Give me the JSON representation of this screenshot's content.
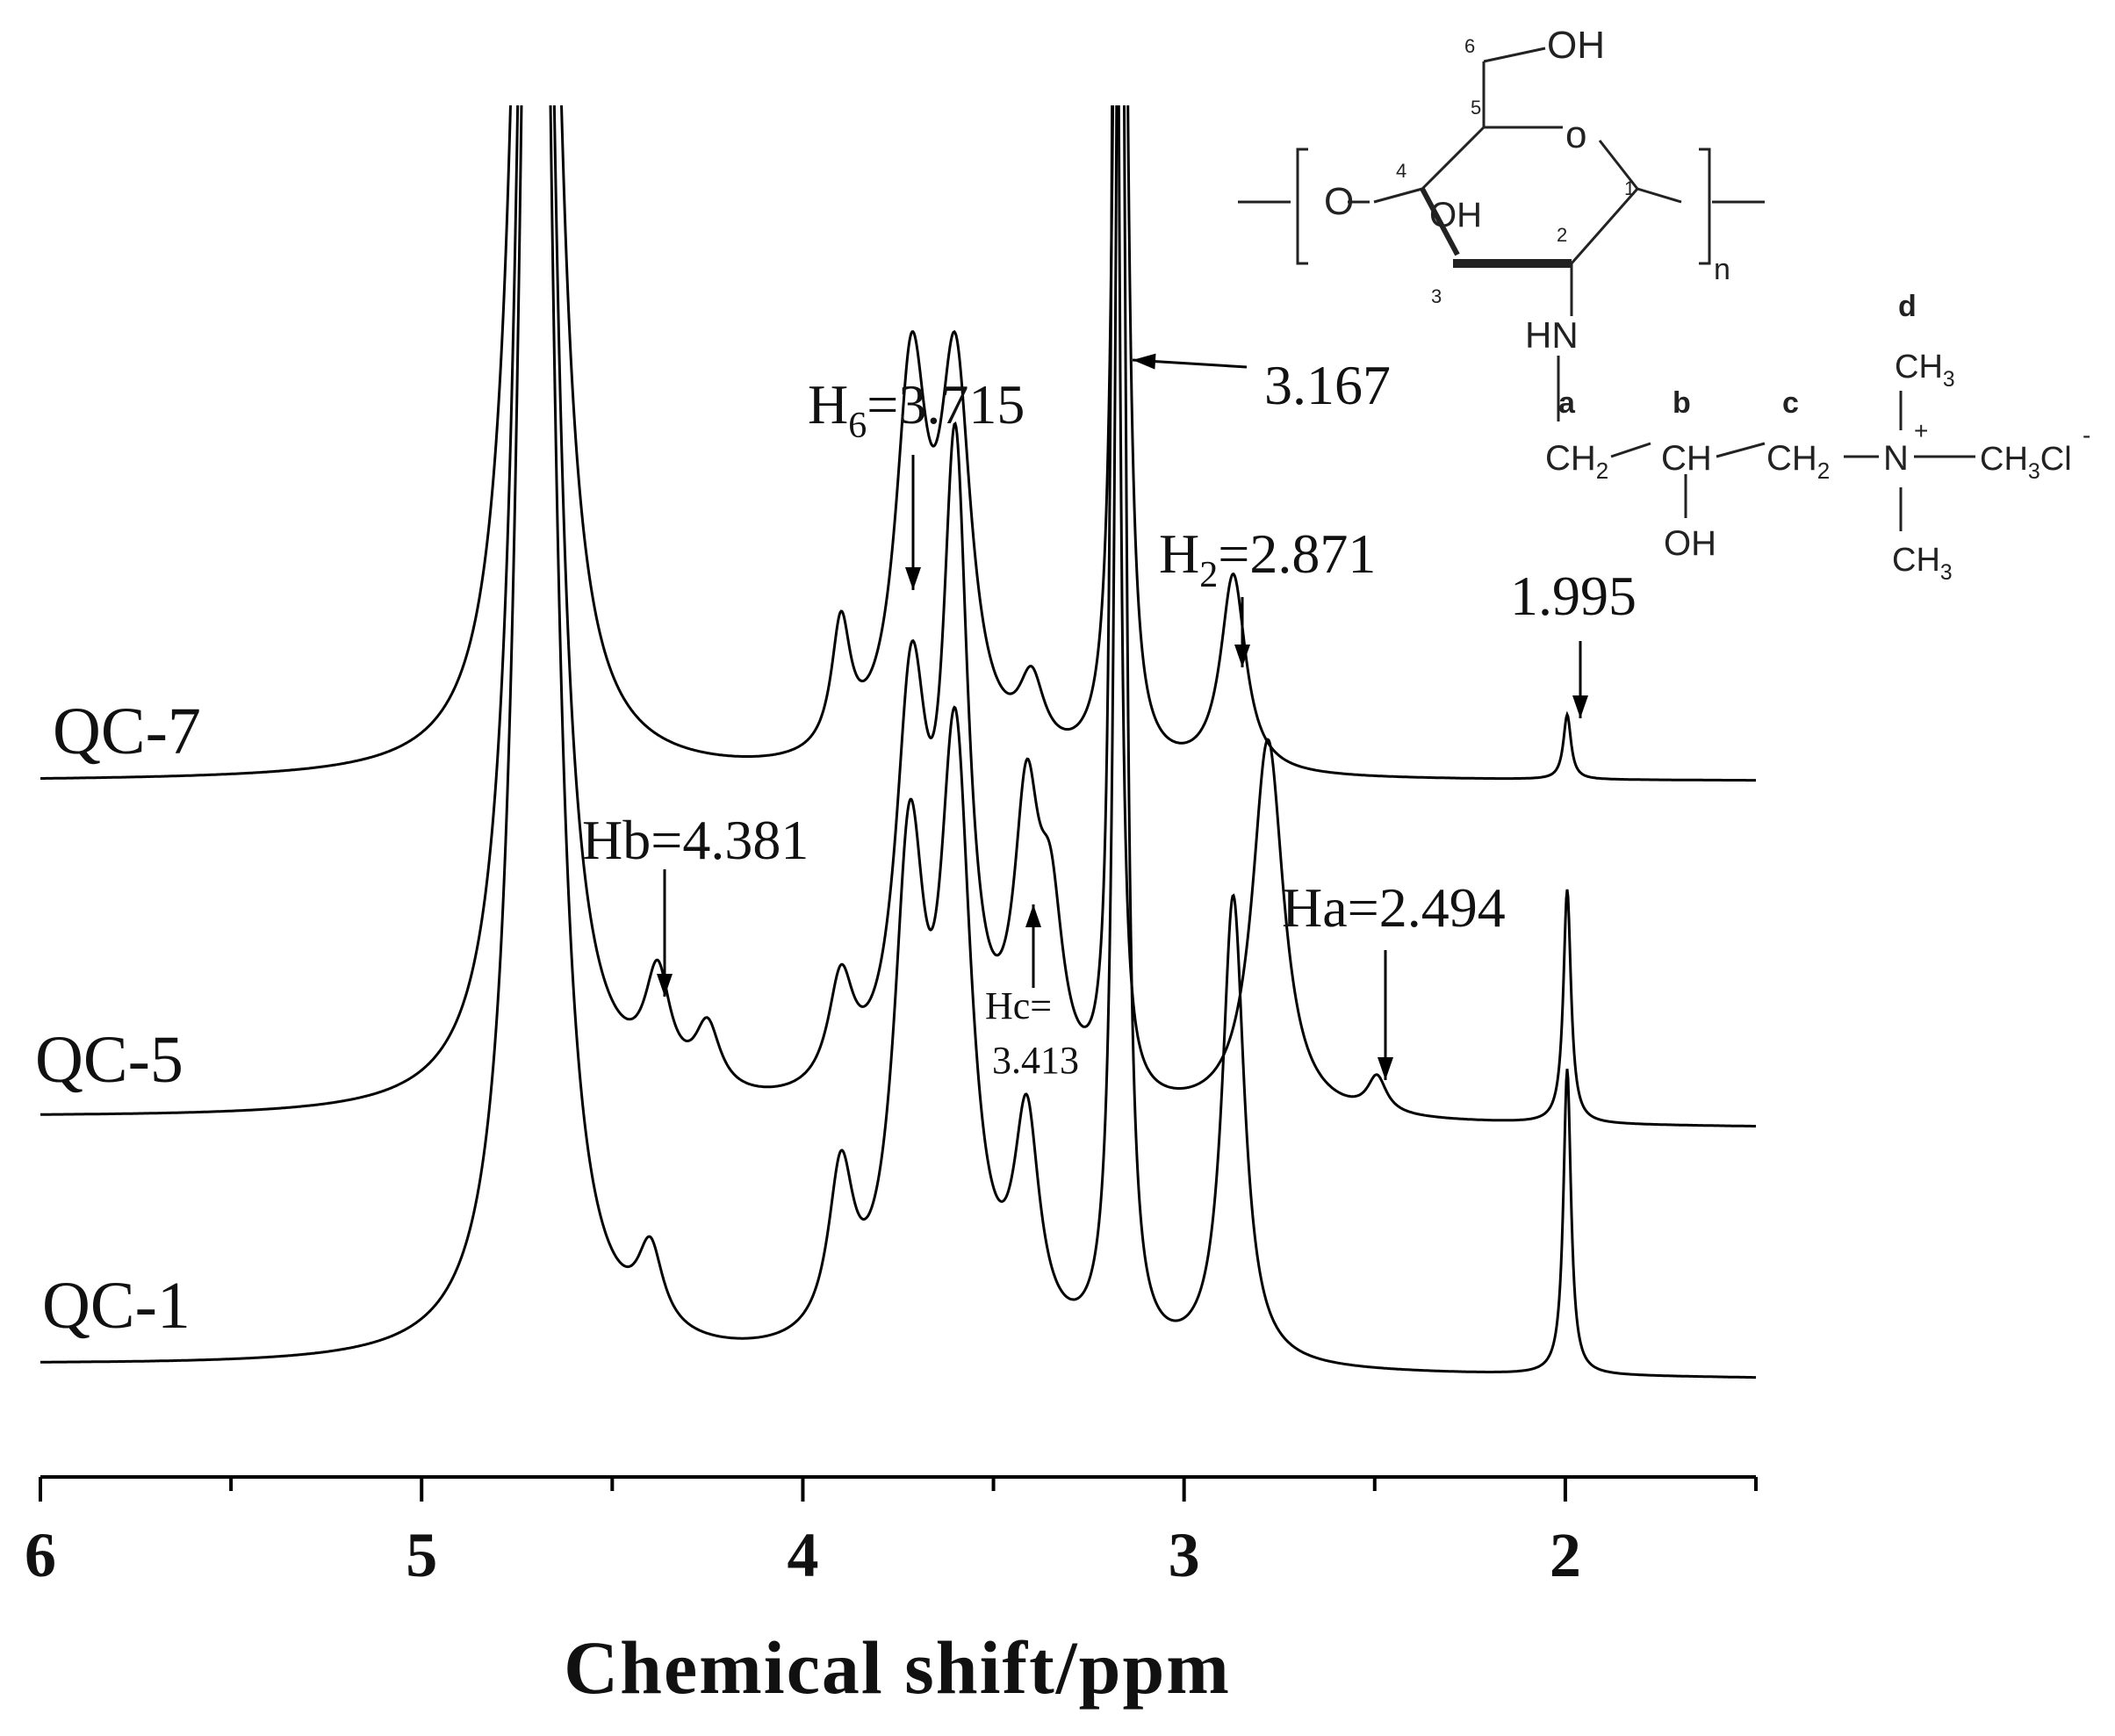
{
  "chart_data": {
    "type": "line",
    "title": "",
    "xlabel": "Chemical shift/ppm",
    "ylabel": "",
    "xlim": [
      6.0,
      1.5
    ],
    "x_reversed": true,
    "xticks": [
      6,
      5,
      4,
      3,
      2
    ],
    "xtick_labels": [
      "6",
      "5",
      "4",
      "3",
      "2"
    ],
    "grid": false,
    "legend": "none",
    "line_color": "#000000",
    "series": [
      {
        "name": "QC-7",
        "baseline": 0.0,
        "peaks": [
          {
            "x": 4.7,
            "h": 6.0,
            "w": 0.045
          },
          {
            "x": 3.9,
            "h": 0.35,
            "w": 0.03
          },
          {
            "x": 3.715,
            "h": 1.05,
            "w": 0.05
          },
          {
            "x": 3.6,
            "h": 1.05,
            "w": 0.05
          },
          {
            "x": 3.4,
            "h": 0.2,
            "w": 0.04
          },
          {
            "x": 3.167,
            "h": 5.0,
            "w": 0.015
          },
          {
            "x": 2.871,
            "h": 0.55,
            "w": 0.04
          },
          {
            "x": 1.995,
            "h": 0.18,
            "w": 0.012
          }
        ]
      },
      {
        "name": "QC-5",
        "baseline": 0.0,
        "peaks": [
          {
            "x": 4.7,
            "h": 6.0,
            "w": 0.045
          },
          {
            "x": 4.381,
            "h": 0.3,
            "w": 0.04
          },
          {
            "x": 4.25,
            "h": 0.18,
            "w": 0.04
          },
          {
            "x": 3.9,
            "h": 0.3,
            "w": 0.04
          },
          {
            "x": 3.715,
            "h": 1.1,
            "w": 0.05
          },
          {
            "x": 3.6,
            "h": 1.7,
            "w": 0.04
          },
          {
            "x": 3.413,
            "h": 0.75,
            "w": 0.04
          },
          {
            "x": 3.35,
            "h": 0.45,
            "w": 0.04
          },
          {
            "x": 3.18,
            "h": 4.2,
            "w": 0.012
          },
          {
            "x": 2.78,
            "h": 1.05,
            "w": 0.05
          },
          {
            "x": 2.494,
            "h": 0.1,
            "w": 0.03
          },
          {
            "x": 1.995,
            "h": 0.65,
            "w": 0.012
          }
        ]
      },
      {
        "name": "QC-1",
        "baseline": 0.0,
        "peaks": [
          {
            "x": 4.7,
            "h": 6.0,
            "w": 0.045
          },
          {
            "x": 4.4,
            "h": 0.22,
            "w": 0.04
          },
          {
            "x": 3.9,
            "h": 0.45,
            "w": 0.04
          },
          {
            "x": 3.72,
            "h": 1.3,
            "w": 0.05
          },
          {
            "x": 3.6,
            "h": 1.6,
            "w": 0.05
          },
          {
            "x": 3.413,
            "h": 0.6,
            "w": 0.04
          },
          {
            "x": 3.167,
            "h": 5.0,
            "w": 0.015
          },
          {
            "x": 2.871,
            "h": 1.3,
            "w": 0.035
          },
          {
            "x": 1.995,
            "h": 0.85,
            "w": 0.012
          }
        ]
      }
    ],
    "annotations": [
      {
        "text": "H6=3.715",
        "main": "H",
        "sub": "6",
        "rest": "=3.715",
        "x": 3.715
      },
      {
        "text": "3.167",
        "x": 3.167
      },
      {
        "text": "H2=2.871",
        "main": "H",
        "sub": "2",
        "rest": "=2.871",
        "x": 2.871
      },
      {
        "text": "1.995",
        "x": 1.995
      },
      {
        "text": "Hb=4.381",
        "x": 4.381
      },
      {
        "text": "Ha=2.494",
        "x": 2.494
      },
      {
        "text": "Hc=",
        "text2": "3.413",
        "x": 3.413
      }
    ]
  },
  "structure": {
    "atoms": {
      "oh_top": "OH",
      "oh_ring": "OH",
      "o_ring": "o",
      "o_left": "O",
      "n_sub": "n",
      "hn": "HN",
      "c_label_a": "a",
      "c_label_b": "b",
      "c_label_c": "c",
      "c_label_d": "d",
      "ch2_a": "CH2",
      "ch_b": "CH",
      "ch2_c": "CH2",
      "n_plus": "N",
      "plus": "+",
      "ch3_top": "CH3",
      "ch3_bottom": "CH3",
      "ch3cl": "CH3Cl",
      "minus": "-",
      "oh_b": "OH",
      "num1": "1",
      "num2": "2",
      "num3": "3",
      "num4": "4",
      "num5": "5",
      "num6": "6"
    }
  }
}
